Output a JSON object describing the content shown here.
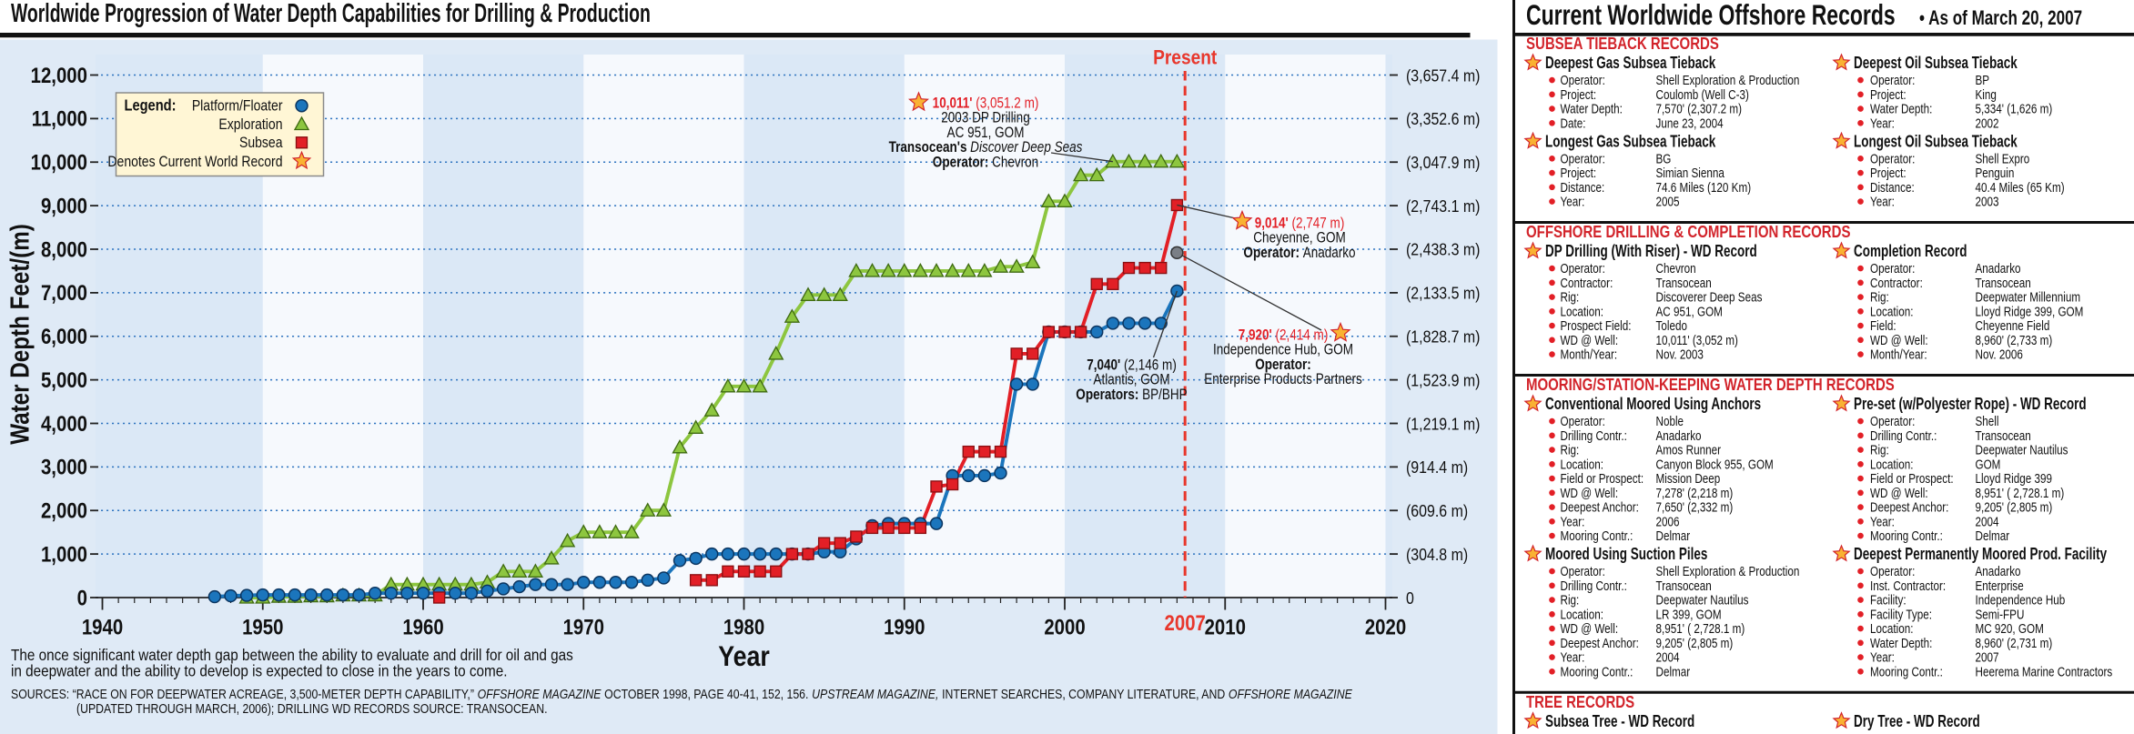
{
  "chart_data": {
    "type": "line",
    "title": "Worldwide Progression of Water Depth Capabilities for Drilling & Production",
    "x_label": "Year",
    "y_label": "Water Depth Feet/(m)",
    "xlim": [
      1940,
      2020
    ],
    "xticks": [
      1940,
      1950,
      1960,
      1970,
      1980,
      1990,
      2000,
      2010,
      2020
    ],
    "ylim": [
      0,
      12000
    ],
    "yticks": [
      0,
      {
        "value": 1000,
        "label": "1,000"
      },
      {
        "value": 2000,
        "label": "2,000"
      },
      {
        "value": 3000,
        "label": "3,000"
      },
      {
        "value": 4000,
        "label": "4,000"
      },
      {
        "value": 5000,
        "label": "5,000"
      },
      {
        "value": 6000,
        "label": "6,000"
      },
      {
        "value": 7000,
        "label": "7,000"
      },
      {
        "value": 8000,
        "label": "8,000"
      },
      {
        "value": 9000,
        "label": "9,000"
      },
      {
        "value": 10000,
        "label": "10,000"
      },
      {
        "value": 11000,
        "label": "11,000"
      },
      {
        "value": 12000,
        "label": "12,000"
      }
    ],
    "y2lim": [
      0,
      3657.4
    ],
    "y2ticks": [
      0,
      {
        "value": 304.8,
        "label": "(304.8 m)"
      },
      {
        "value": 609.6,
        "label": "(609.6 m)"
      },
      {
        "value": 914.4,
        "label": "(914.4 m)"
      },
      {
        "value": 1219.1,
        "label": "(1,219.1 m)"
      },
      {
        "value": 1523.9,
        "label": "(1,523.9 m)"
      },
      {
        "value": 1828.7,
        "label": "(1,828.7 m)"
      },
      {
        "value": 2133.5,
        "label": "(2,133.5 m)"
      },
      {
        "value": 2438.3,
        "label": "(2,438.3 m)"
      },
      {
        "value": 2743.1,
        "label": "(2,743.1 m)"
      },
      {
        "value": 3047.9,
        "label": "(3,047.9 m)"
      },
      {
        "value": 3352.6,
        "label": "(3,352.6 m)"
      },
      {
        "value": 3657.4,
        "label": "(3,657.4 m)"
      }
    ],
    "grid": true,
    "x": [
      1947,
      1948,
      1949,
      1950,
      1951,
      1952,
      1953,
      1954,
      1955,
      1956,
      1957,
      1958,
      1959,
      1960,
      1961,
      1962,
      1963,
      1964,
      1965,
      1966,
      1967,
      1968,
      1969,
      1970,
      1971,
      1972,
      1973,
      1974,
      1975,
      1976,
      1977,
      1978,
      1979,
      1980,
      1981,
      1982,
      1983,
      1984,
      1985,
      1986,
      1987,
      1988,
      1989,
      1990,
      1991,
      1992,
      1993,
      1994,
      1995,
      1996,
      1997,
      1998,
      1999,
      2000,
      2001,
      2002,
      2003,
      2004,
      2005,
      2006,
      2007
    ],
    "series": [
      {
        "name": "Platform/Floater",
        "color": "#1b75bc",
        "marker": "circle",
        "values": [
          20,
          40,
          50,
          60,
          60,
          60,
          60,
          60,
          60,
          60,
          100,
          100,
          100,
          100,
          100,
          100,
          100,
          150,
          200,
          250,
          300,
          300,
          300,
          350,
          350,
          350,
          350,
          400,
          450,
          850,
          900,
          1000,
          1000,
          1000,
          1000,
          1000,
          1000,
          1000,
          1050,
          1050,
          1350,
          1650,
          1700,
          1700,
          1700,
          1700,
          2800,
          2800,
          2800,
          2860,
          4900,
          4900,
          6100,
          6100,
          6100,
          6100,
          6300,
          6300,
          6300,
          6300,
          7040
        ]
      },
      {
        "name": "Exploration",
        "color": "#8dc63f",
        "marker": "triangle",
        "values": [
          null,
          null,
          0,
          0,
          20,
          20,
          30,
          30,
          50,
          50,
          50,
          300,
          300,
          300,
          300,
          300,
          300,
          350,
          600,
          600,
          600,
          900,
          1300,
          1500,
          1500,
          1500,
          1500,
          2000,
          2000,
          3450,
          3900,
          4300,
          4850,
          4850,
          4850,
          5600,
          6450,
          6950,
          6950,
          6950,
          7500,
          7500,
          7500,
          7500,
          7500,
          7500,
          7500,
          7500,
          7500,
          7600,
          7600,
          7700,
          9100,
          9100,
          9700,
          9700,
          10011,
          10011,
          10011,
          10011,
          10011
        ]
      },
      {
        "name": "Subsea",
        "color": "#e21f26",
        "marker": "square",
        "values": [
          null,
          null,
          null,
          null,
          null,
          null,
          null,
          null,
          null,
          null,
          null,
          null,
          null,
          null,
          0,
          null,
          null,
          null,
          null,
          null,
          null,
          null,
          null,
          null,
          null,
          null,
          null,
          null,
          null,
          null,
          400,
          400,
          600,
          600,
          600,
          600,
          1000,
          1000,
          1250,
          1250,
          1400,
          1600,
          1600,
          1600,
          1600,
          2550,
          2600,
          3350,
          3350,
          3350,
          5600,
          5600,
          6100,
          6100,
          6100,
          7200,
          7200,
          7570,
          7570,
          7570,
          9014
        ]
      }
    ],
    "legend": {
      "title": "Legend:",
      "record_label": "Denotes Current World Record",
      "position": "upper left"
    },
    "present": {
      "label": "Present",
      "x": 2007.5,
      "x_label": "2007",
      "color": "#e8372c"
    },
    "annotations": [
      {
        "x": 2003,
        "y": 10011,
        "lines": [
          [
            {
              "text": "10,011'",
              "style": "bold-red"
            },
            {
              "text": "(3,051.2 m)",
              "style": "red"
            }
          ],
          [
            {
              "text": "2003 DP Drilling"
            }
          ],
          [
            {
              "text": "AC 951, GOM"
            }
          ],
          [
            {
              "text": "Transocean's",
              "style": "bold"
            },
            {
              "text": "Discover Deep Seas",
              "style": "italic"
            }
          ],
          [
            {
              "text": "Operator:",
              "style": "bold"
            },
            {
              "text": "Chevron"
            }
          ]
        ]
      },
      {
        "x": 2007,
        "y": 9014,
        "lines": [
          [
            {
              "text": "9,014'",
              "style": "bold-red"
            },
            {
              "text": "(2,747 m)",
              "style": "red"
            }
          ],
          [
            {
              "text": "Cheyenne, GOM"
            }
          ],
          [
            {
              "text": "Operator:",
              "style": "bold"
            },
            {
              "text": "Anadarko"
            }
          ]
        ]
      },
      {
        "x": 2007,
        "y": 7920,
        "marker_color": "#7a7f86",
        "lines": [
          [
            {
              "text": "7,920'",
              "style": "bold-red"
            },
            {
              "text": "(2,414 m)",
              "style": "red"
            }
          ],
          [
            {
              "text": "Independence Hub, GOM"
            }
          ],
          [
            {
              "text": "Operator:",
              "style": "bold"
            }
          ],
          [
            {
              "text": "Enterprise Products Partners"
            }
          ]
        ]
      },
      {
        "x": 2007,
        "y": 7040,
        "lines": [
          [
            {
              "text": "7,040'",
              "style": "bold"
            },
            {
              "text": "(2,146 m)"
            }
          ],
          [
            {
              "text": "Atlantis, GOM"
            }
          ],
          [
            {
              "text": "Operators:",
              "style": "bold"
            },
            {
              "text": "BP/BHP"
            }
          ]
        ]
      }
    ]
  },
  "note": [
    "The once significant water depth gap between the ability to evaluate and drill for oil and gas",
    "in deepwater and the ability to develop is expected to close in the years to come."
  ],
  "sources": [
    [
      {
        "text": "SOURCES: “RACE ON FOR DEEPWATER ACREAGE, 3,500-METER DEPTH CAPABILITY,”"
      },
      {
        "text": "OFFSHORE MAGAZINE",
        "style": "italic"
      },
      {
        "text": "OCTOBER 1998, PAGE 40-41, 152, 156."
      },
      {
        "text": "UPSTREAM MAGAZINE,",
        "style": "italic"
      },
      {
        "text": "INTERNET SEARCHES, COMPANY LITERATURE, AND"
      },
      {
        "text": "OFFSHORE MAGAZINE",
        "style": "italic"
      }
    ],
    [
      {
        "text": "(UPDATED THROUGH MARCH, 2006); DRILLING WD RECORDS SOURCE: TRANSOCEAN."
      }
    ]
  ],
  "records_panel": {
    "title": "Current Worldwide Offshore Records",
    "subtitle": "• As of March 20, 2007",
    "sections": [
      {
        "title": "SUBSEA TIEBACK RECORDS",
        "records": [
          {
            "title": "Deepest Gas Subsea Tieback",
            "fields": [
              {
                "label": "Operator:",
                "value": "Shell Exploration & Production"
              },
              {
                "label": "Project:",
                "value": "Coulomb (Well C-3)"
              },
              {
                "label": "Water Depth:",
                "value": "7,570' (2,307.2 m)"
              },
              {
                "label": "Date:",
                "value": "June 23, 2004"
              }
            ]
          },
          {
            "title": "Deepest Oil Subsea Tieback",
            "fields": [
              {
                "label": "Operator:",
                "value": "BP"
              },
              {
                "label": "Project:",
                "value": "King"
              },
              {
                "label": "Water Depth:",
                "value": "5,334' (1,626 m)"
              },
              {
                "label": "Year:",
                "value": "2002"
              }
            ]
          },
          {
            "title": "Longest Gas Subsea Tieback",
            "fields": [
              {
                "label": "Operator:",
                "value": "BG"
              },
              {
                "label": "Project:",
                "value": "Simian Sienna"
              },
              {
                "label": "Distance:",
                "value": "74.6 Miles (120 Km)"
              },
              {
                "label": "Year:",
                "value": "2005"
              }
            ]
          },
          {
            "title": "Longest Oil Subsea Tieback",
            "fields": [
              {
                "label": "Operator:",
                "value": "Shell Expro"
              },
              {
                "label": "Project:",
                "value": "Penguin"
              },
              {
                "label": "Distance:",
                "value": "40.4 Miles (65 Km)"
              },
              {
                "label": "Year:",
                "value": "2003"
              }
            ]
          }
        ]
      },
      {
        "title": "OFFSHORE DRILLING & COMPLETION RECORDS",
        "records": [
          {
            "title": "DP Drilling (With Riser) - WD Record",
            "fields": [
              {
                "label": "Operator:",
                "value": "Chevron"
              },
              {
                "label": "Contractor:",
                "value": "Transocean"
              },
              {
                "label": "Rig:",
                "value": "Discoverer Deep Seas"
              },
              {
                "label": "Location:",
                "value": "AC 951, GOM"
              },
              {
                "label": "Prospect Field:",
                "value": "Toledo"
              },
              {
                "label": "WD @ Well:",
                "value": "10,011' (3,052 m)"
              },
              {
                "label": "Month/Year:",
                "value": "Nov. 2003"
              }
            ]
          },
          {
            "title": "Completion Record",
            "fields": [
              {
                "label": "Operator:",
                "value": "Anadarko"
              },
              {
                "label": "Contractor:",
                "value": "Transocean"
              },
              {
                "label": "Rig:",
                "value": "Deepwater Millennium"
              },
              {
                "label": "Location:",
                "value": "Lloyd Ridge 399, GOM"
              },
              {
                "label": "Field:",
                "value": "Cheyenne Field"
              },
              {
                "label": "WD @ Well:",
                "value": "8,960' (2,733 m)"
              },
              {
                "label": "Month/Year:",
                "value": "Nov. 2006"
              }
            ]
          }
        ]
      },
      {
        "title": "MOORING/STATION-KEEPING WATER DEPTH RECORDS",
        "records": [
          {
            "title": "Conventional Moored Using Anchors",
            "fields": [
              {
                "label": "Operator:",
                "value": "Noble"
              },
              {
                "label": "Drilling Contr.:",
                "value": "Anadarko"
              },
              {
                "label": "Rig:",
                "value": "Amos Runner"
              },
              {
                "label": "Location:",
                "value": "Canyon Block 955, GOM"
              },
              {
                "label": "Field or Prospect:",
                "value": "Mission Deep"
              },
              {
                "label": "WD @ Well:",
                "value": "7,278' (2,218 m)"
              },
              {
                "label": "Deepest Anchor:",
                "value": "7,650' (2,332 m)"
              },
              {
                "label": "Year:",
                "value": "2006"
              },
              {
                "label": "Mooring Contr.:",
                "value": "Delmar"
              }
            ]
          },
          {
            "title": "Pre-set (w/Polyester Rope) - WD Record",
            "fields": [
              {
                "label": "Operator:",
                "value": "Shell"
              },
              {
                "label": "Drilling Contr.:",
                "value": "Transocean"
              },
              {
                "label": "Rig:",
                "value": "Deepwater Nautilus"
              },
              {
                "label": "Location:",
                "value": "GOM"
              },
              {
                "label": "Field or Prospect:",
                "value": "Lloyd Ridge 399"
              },
              {
                "label": "WD @ Well:",
                "value": "8,951' ( 2,728.1 m)"
              },
              {
                "label": "Deepest Anchor:",
                "value": "9,205' (2,805 m)"
              },
              {
                "label": "Year:",
                "value": "2004"
              },
              {
                "label": "Mooring Contr.:",
                "value": "Delmar"
              }
            ]
          },
          {
            "title": "Moored Using Suction Piles",
            "fields": [
              {
                "label": "Operator:",
                "value": "Shell Exploration & Production"
              },
              {
                "label": "Drilling Contr.:",
                "value": "Transocean"
              },
              {
                "label": "Rig:",
                "value": "Deepwater Nautilus"
              },
              {
                "label": "Location:",
                "value": "LR 399, GOM"
              },
              {
                "label": "WD @ Well:",
                "value": "8,951' ( 2,728.1 m)"
              },
              {
                "label": "Deepest Anchor:",
                "value": "9,205' (2,805 m)"
              },
              {
                "label": "Year:",
                "value": "2004"
              },
              {
                "label": "Mooring Contr.:",
                "value": "Delmar"
              }
            ]
          },
          {
            "title": "Deepest Permanently Moored Prod. Facility",
            "fields": [
              {
                "label": "Operator:",
                "value": "Anadarko"
              },
              {
                "label": "Inst. Contractor:",
                "value": "Enterprise"
              },
              {
                "label": "Facility:",
                "value": "Independence Hub"
              },
              {
                "label": "Facility Type:",
                "value": "Semi-FPU"
              },
              {
                "label": "Location:",
                "value": "MC 920, GOM"
              },
              {
                "label": "Water Depth:",
                "value": "8,960' (2,731 m)"
              },
              {
                "label": "Year:",
                "value": "2007"
              },
              {
                "label": "Mooring Contr.:",
                "value": "Heerema Marine Contractors"
              }
            ]
          }
        ]
      },
      {
        "title": "TREE RECORDS",
        "records": [
          {
            "title": "Subsea Tree - WD Record",
            "fields": []
          },
          {
            "title": "Dry Tree - WD Record",
            "fields": []
          }
        ]
      }
    ]
  }
}
